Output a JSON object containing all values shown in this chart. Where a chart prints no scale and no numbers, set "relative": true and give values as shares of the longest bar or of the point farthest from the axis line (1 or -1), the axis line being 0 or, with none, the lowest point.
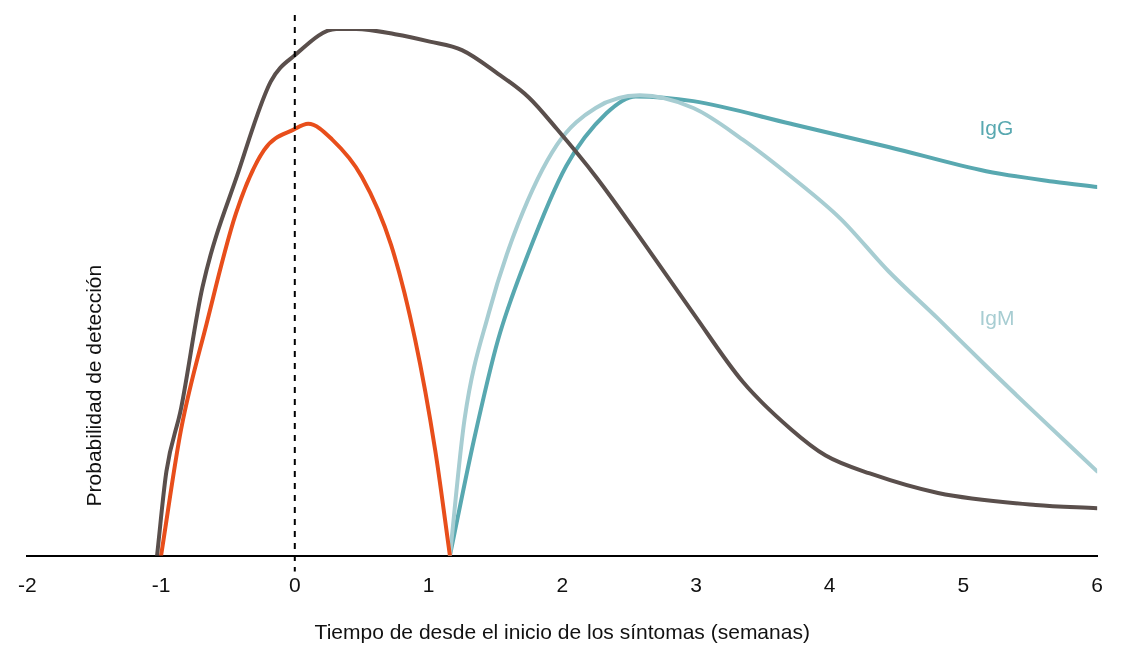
{
  "chart_data": {
    "type": "line",
    "relative": true,
    "xlabel": "Tiempo de desde el inicio de los síntomas (semanas)",
    "ylabel": "Probabilidad de detección",
    "xlim": [
      -2,
      6
    ],
    "xticks": [
      -2,
      -1,
      0,
      1,
      2,
      3,
      4,
      5,
      6
    ],
    "grid": false,
    "legend": false,
    "marker": "none",
    "line_style": "solid",
    "ref_lines": [
      {
        "axis": "x",
        "value": 0,
        "color": "#000000",
        "line_style": "dashed"
      }
    ],
    "series": [
      {
        "color": "#5a4f4c",
        "x": [
          -1.03,
          -0.96,
          -0.85,
          -0.69,
          -0.42,
          -0.18,
          0,
          0.31,
          0.46,
          0.75,
          1.01,
          1.25,
          1.52,
          1.75,
          1.96,
          2.25,
          2.62,
          2.98,
          3.35,
          3.71,
          3.97,
          4.3,
          4.81,
          5.54,
          6
        ],
        "values": [
          0,
          0.16,
          0.28,
          0.51,
          0.73,
          0.9,
          0.95,
          1,
          1,
          0.99,
          0.976,
          0.96,
          0.915,
          0.87,
          0.81,
          0.72,
          0.59,
          0.46,
          0.33,
          0.24,
          0.19,
          0.156,
          0.119,
          0.096,
          0.09
        ]
      },
      {
        "color": "#e84e1b",
        "x": [
          -1,
          -0.85,
          -0.66,
          -0.44,
          -0.23,
          0,
          0.1,
          0.28,
          0.5,
          0.72,
          0.9,
          1.05,
          1.16
        ],
        "values": [
          0,
          0.24,
          0.44,
          0.65,
          0.77,
          0.81,
          0.82,
          0.79,
          0.72,
          0.59,
          0.41,
          0.2,
          0
        ]
      },
      {
        "name": "IgM",
        "color": "#a7cdd2",
        "x": [
          1.16,
          1.27,
          1.45,
          1.67,
          1.96,
          2.25,
          2.58,
          2.98,
          3.35,
          3.71,
          4.08,
          4.44,
          4.81,
          5.17,
          5.54,
          6
        ],
        "values": [
          0,
          0.26,
          0.46,
          0.63,
          0.78,
          0.85,
          0.874,
          0.85,
          0.79,
          0.72,
          0.64,
          0.54,
          0.45,
          0.36,
          0.27,
          0.16
        ]
      },
      {
        "name": "IgG",
        "color": "#58a8b0",
        "x": [
          1.16,
          1.34,
          1.52,
          1.74,
          2.03,
          2.33,
          2.55,
          2.98,
          3.71,
          4.44,
          5.17,
          5.68,
          6
        ],
        "values": [
          0,
          0.22,
          0.41,
          0.57,
          0.74,
          0.84,
          0.872,
          0.863,
          0.82,
          0.776,
          0.73,
          0.71,
          0.7
        ]
      }
    ]
  }
}
